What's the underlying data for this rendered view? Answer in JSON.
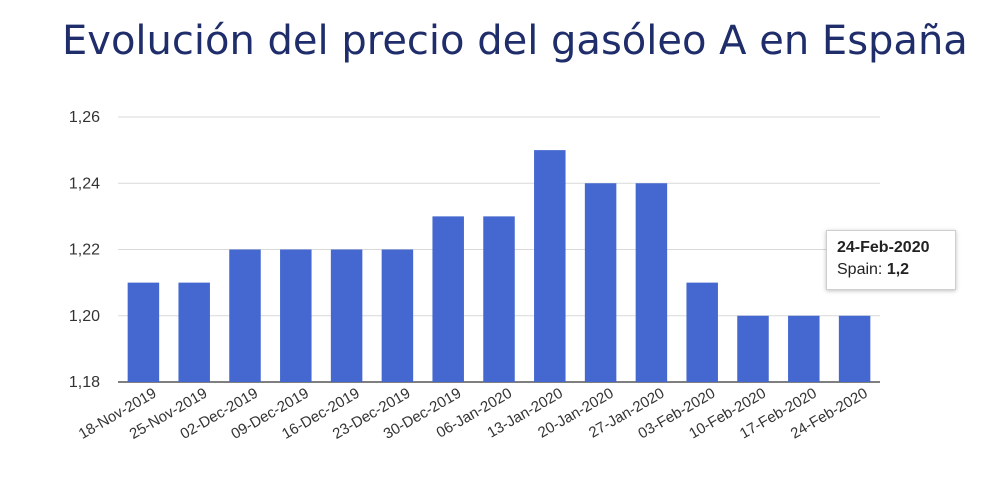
{
  "chart_data": {
    "type": "bar",
    "title": "Evolución del precio del gasóleo A en España",
    "categories": [
      "18-Nov-2019",
      "25-Nov-2019",
      "02-Dec-2019",
      "09-Dec-2019",
      "16-Dec-2019",
      "23-Dec-2019",
      "30-Dec-2019",
      "06-Jan-2020",
      "13-Jan-2020",
      "20-Jan-2020",
      "27-Jan-2020",
      "03-Feb-2020",
      "10-Feb-2020",
      "17-Feb-2020",
      "24-Feb-2020"
    ],
    "series": [
      {
        "name": "Spain",
        "values": [
          1.21,
          1.21,
          1.22,
          1.22,
          1.22,
          1.22,
          1.23,
          1.23,
          1.25,
          1.24,
          1.24,
          1.21,
          1.2,
          1.2,
          1.2
        ]
      }
    ],
    "ylim": [
      1.18,
      1.26
    ],
    "yticks": [
      1.18,
      1.2,
      1.22,
      1.24,
      1.26
    ],
    "ytick_labels": [
      "1,18",
      "1,20",
      "1,22",
      "1,24",
      "1,26"
    ],
    "bar_color": "#4468cf",
    "grid": true,
    "tooltip": {
      "date": "24-Feb-2020",
      "series_label": "Spain:",
      "value": "1,2"
    }
  }
}
